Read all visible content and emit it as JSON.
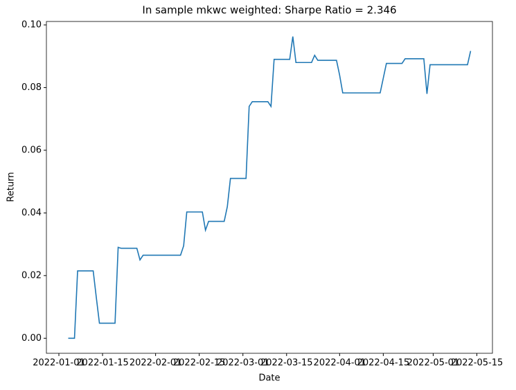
{
  "chart_data": {
    "type": "line",
    "title": "In sample mkwc weighted: Sharpe Ratio = 2.346",
    "x_label": "Date",
    "y_label": "Return",
    "x": [
      "2022-01-04",
      "2022-01-06",
      "2022-01-07",
      "2022-01-12",
      "2022-01-13",
      "2022-01-14",
      "2022-01-19",
      "2022-01-20",
      "2022-01-21",
      "2022-01-26",
      "2022-01-27",
      "2022-01-28",
      "2022-02-09",
      "2022-02-10",
      "2022-02-11",
      "2022-02-16",
      "2022-02-17",
      "2022-02-18",
      "2022-02-23",
      "2022-02-24",
      "2022-02-25",
      "2022-03-02",
      "2022-03-03",
      "2022-03-04",
      "2022-03-09",
      "2022-03-10",
      "2022-03-11",
      "2022-03-16",
      "2022-03-17",
      "2022-03-18",
      "2022-03-23",
      "2022-03-24",
      "2022-03-25",
      "2022-03-31",
      "2022-04-01",
      "2022-04-02",
      "2022-04-14",
      "2022-04-15",
      "2022-04-16",
      "2022-04-21",
      "2022-04-22",
      "2022-04-28",
      "2022-04-29",
      "2022-04-30",
      "2022-05-12",
      "2022-05-13"
    ],
    "series": [
      {
        "color": "#1f77b4",
        "values": [
          0.0,
          0.0,
          0.0215,
          0.0215,
          0.013,
          0.0048,
          0.0048,
          0.029,
          0.0287,
          0.0287,
          0.025,
          0.0265,
          0.0265,
          0.0295,
          0.0403,
          0.0403,
          0.0345,
          0.0373,
          0.0373,
          0.042,
          0.051,
          0.051,
          0.074,
          0.0755,
          0.0755,
          0.074,
          0.089,
          0.089,
          0.0963,
          0.088,
          0.088,
          0.0903,
          0.0887,
          0.0887,
          0.084,
          0.0783,
          0.0783,
          0.083,
          0.0877,
          0.0877,
          0.0892,
          0.0892,
          0.078,
          0.0873,
          0.0873,
          0.0917
        ]
      }
    ],
    "xlim": [
      "2021-12-28",
      "2022-05-20"
    ],
    "xticks": [
      "2022-01-01",
      "2022-01-15",
      "2022-02-01",
      "2022-02-15",
      "2022-03-01",
      "2022-03-15",
      "2022-04-01",
      "2022-04-15",
      "2022-05-01",
      "2022-05-15"
    ],
    "ylim": [
      -0.0048,
      0.1011
    ],
    "yticks": [
      {
        "value": 0,
        "label": "0.00"
      },
      {
        "value": 0.02,
        "label": "0.02"
      },
      {
        "value": 0.04,
        "label": "0.04"
      },
      {
        "value": 0.06,
        "label": "0.06"
      },
      {
        "value": 0.08,
        "label": "0.08"
      },
      {
        "value": 0.1,
        "label": "0.10"
      }
    ],
    "grid": false
  }
}
